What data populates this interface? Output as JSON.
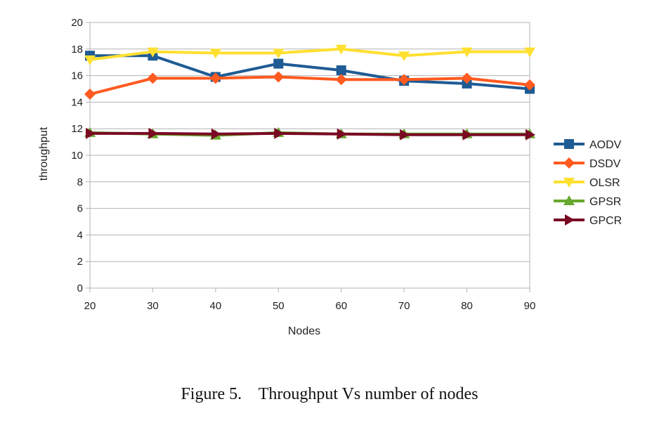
{
  "chart_data": {
    "type": "line",
    "title": "",
    "xlabel": "Nodes",
    "ylabel": "throughput",
    "x": [
      20,
      30,
      40,
      50,
      60,
      70,
      80,
      90
    ],
    "xlim": [
      20,
      90
    ],
    "ylim": [
      0,
      20
    ],
    "yticks": [
      0,
      2,
      4,
      6,
      8,
      10,
      12,
      14,
      16,
      18,
      20
    ],
    "grid": "horizontal",
    "legend": "right",
    "series": [
      {
        "name": "AODV",
        "color": "#1f5b94",
        "marker": "square",
        "values": [
          17.5,
          17.5,
          15.9,
          16.9,
          16.4,
          15.6,
          15.4,
          15.0
        ]
      },
      {
        "name": "DSDV",
        "color": "#ff5a1f",
        "marker": "diamond",
        "values": [
          14.6,
          15.8,
          15.8,
          15.9,
          15.7,
          15.7,
          15.8,
          15.3
        ]
      },
      {
        "name": "OLSR",
        "color": "#ffe030",
        "marker": "triangle-down",
        "values": [
          17.2,
          17.8,
          17.7,
          17.7,
          18.0,
          17.5,
          17.8,
          17.8
        ]
      },
      {
        "name": "GPSR",
        "color": "#68a82e",
        "marker": "triangle-up",
        "values": [
          11.7,
          11.6,
          11.5,
          11.7,
          11.6,
          11.6,
          11.6,
          11.6
        ]
      },
      {
        "name": "GPCR",
        "color": "#7a0a24",
        "marker": "triangle-right",
        "values": [
          11.65,
          11.65,
          11.6,
          11.65,
          11.6,
          11.55,
          11.55,
          11.55
        ]
      }
    ]
  },
  "caption": {
    "label": "Figure 5.",
    "text": "Throughput Vs number of nodes"
  }
}
